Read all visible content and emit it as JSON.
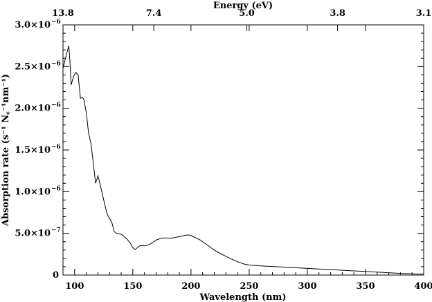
{
  "chart_data": {
    "type": "line",
    "title": "",
    "xlabel": "Wavelength (nm)",
    "ylabel": "Absorption rate (s⁻¹ N꜀⁻¹nm⁻¹)",
    "top_axis_label": "Energy (eV)",
    "xlim": [
      90,
      400
    ],
    "ylim": [
      0,
      3e-06
    ],
    "grid": false,
    "legend": "none",
    "line_color": "#000000",
    "x_ticks": [
      {
        "value": 100,
        "label": "100"
      },
      {
        "value": 150,
        "label": "150"
      },
      {
        "value": 200,
        "label": "200"
      },
      {
        "value": 250,
        "label": "250"
      },
      {
        "value": 300,
        "label": "300"
      },
      {
        "value": 350,
        "label": "350"
      },
      {
        "value": 400,
        "label": "400"
      }
    ],
    "y_ticks": [
      {
        "value": 0,
        "mantissa": "0",
        "exponent": ""
      },
      {
        "value": 5e-07,
        "mantissa": "5.0×10",
        "exponent": "−7"
      },
      {
        "value": 1e-06,
        "mantissa": "1.0×10",
        "exponent": "−6"
      },
      {
        "value": 1.5e-06,
        "mantissa": "1.5×10",
        "exponent": "−6"
      },
      {
        "value": 2e-06,
        "mantissa": "2.0×10",
        "exponent": "−6"
      },
      {
        "value": 2.5e-06,
        "mantissa": "2.5×10",
        "exponent": "−6"
      },
      {
        "value": 3e-06,
        "mantissa": "3.0×10",
        "exponent": "−6"
      }
    ],
    "top_ticks": [
      {
        "value": 90,
        "label": "13.8"
      },
      {
        "value": 168,
        "label": "7.4"
      },
      {
        "value": 248,
        "label": "5.0"
      },
      {
        "value": 326,
        "label": "3.8"
      },
      {
        "value": 400,
        "label": "3.1"
      }
    ],
    "series": [
      {
        "x": [
          90,
          93,
          95,
          96,
          97,
          99,
          101,
          103,
          105,
          107,
          108,
          110,
          112,
          114,
          116,
          118,
          120,
          122,
          124,
          126,
          128,
          130,
          132,
          134,
          136,
          138,
          140,
          142,
          145,
          148,
          150,
          152,
          154,
          156,
          158,
          160,
          163,
          166,
          170,
          174,
          178,
          182,
          186,
          190,
          193,
          196,
          199,
          202,
          205,
          208,
          212,
          216,
          220,
          225,
          230,
          235,
          240,
          245,
          250,
          260,
          280,
          300,
          320,
          340,
          360,
          380,
          400
        ],
        "y": [
          2.48e-06,
          2.65e-06,
          2.75e-06,
          2.55e-06,
          2.28e-06,
          2.38e-06,
          2.43e-06,
          2.4e-06,
          2.12e-06,
          2.13e-06,
          2.1e-06,
          1.95e-06,
          1.7e-06,
          1.58e-06,
          1.35e-06,
          1.1e-06,
          1.19e-06,
          1.08e-06,
          9.6e-07,
          8.4e-07,
          7.3e-07,
          6.8e-07,
          6.3e-07,
          5.2e-07,
          5e-07,
          4.95e-07,
          4.9e-07,
          4.7e-07,
          4.3e-07,
          3.8e-07,
          3.3e-07,
          3.05e-07,
          3.3e-07,
          3.5e-07,
          3.55e-07,
          3.5e-07,
          3.6e-07,
          3.8e-07,
          4.2e-07,
          4.4e-07,
          4.45e-07,
          4.4e-07,
          4.5e-07,
          4.6e-07,
          4.7e-07,
          4.8e-07,
          4.8e-07,
          4.6e-07,
          4.4e-07,
          4.2e-07,
          3.8e-07,
          3.4e-07,
          3e-07,
          2.6e-07,
          2.25e-07,
          1.9e-07,
          1.6e-07,
          1.35e-07,
          1.2e-07,
          1.1e-07,
          9.5e-08,
          8e-08,
          6.5e-08,
          5e-08,
          3.5e-08,
          2e-08,
          1e-08
        ]
      }
    ]
  }
}
